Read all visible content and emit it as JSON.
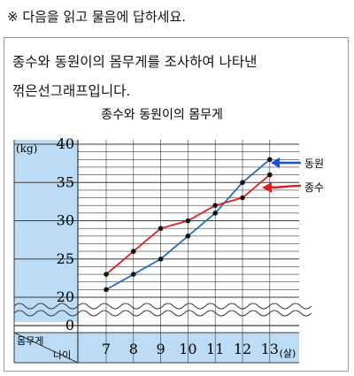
{
  "instruction": "※ 다음을 읽고 물음에 답하세요.",
  "description": {
    "line1": "종수와 동원이의 몸무게를 조사하여 나타낸",
    "line2": "꺾은선그래프입니다."
  },
  "chart_data": {
    "type": "line",
    "title": "종수와 동원이의 몸무게",
    "y_unit_label": "(kg)",
    "x_unit_label": "(살)",
    "corner_label_top": "몸무게",
    "corner_label_bottom": "나이",
    "x": [
      7,
      8,
      9,
      10,
      11,
      12,
      13
    ],
    "y_ticks": [
      0,
      20,
      25,
      30,
      35,
      40
    ],
    "ylim": [
      20,
      40
    ],
    "axis_break": true,
    "series": [
      {
        "name": "동원",
        "values": [
          21,
          23,
          25,
          28,
          31,
          35,
          38
        ],
        "color": "#1f6fc4"
      },
      {
        "name": "종수",
        "values": [
          23,
          26,
          29,
          30,
          32,
          33,
          36
        ],
        "color": "#e02020"
      }
    ],
    "grid": true,
    "legend_placement": "right, as arrows pointing at line ends"
  },
  "colors": {
    "panel": "#bcdcf5",
    "grid": "#3a3a3a",
    "arrow_donwon": "#1550e0",
    "arrow_jongsu": "#e02020"
  }
}
